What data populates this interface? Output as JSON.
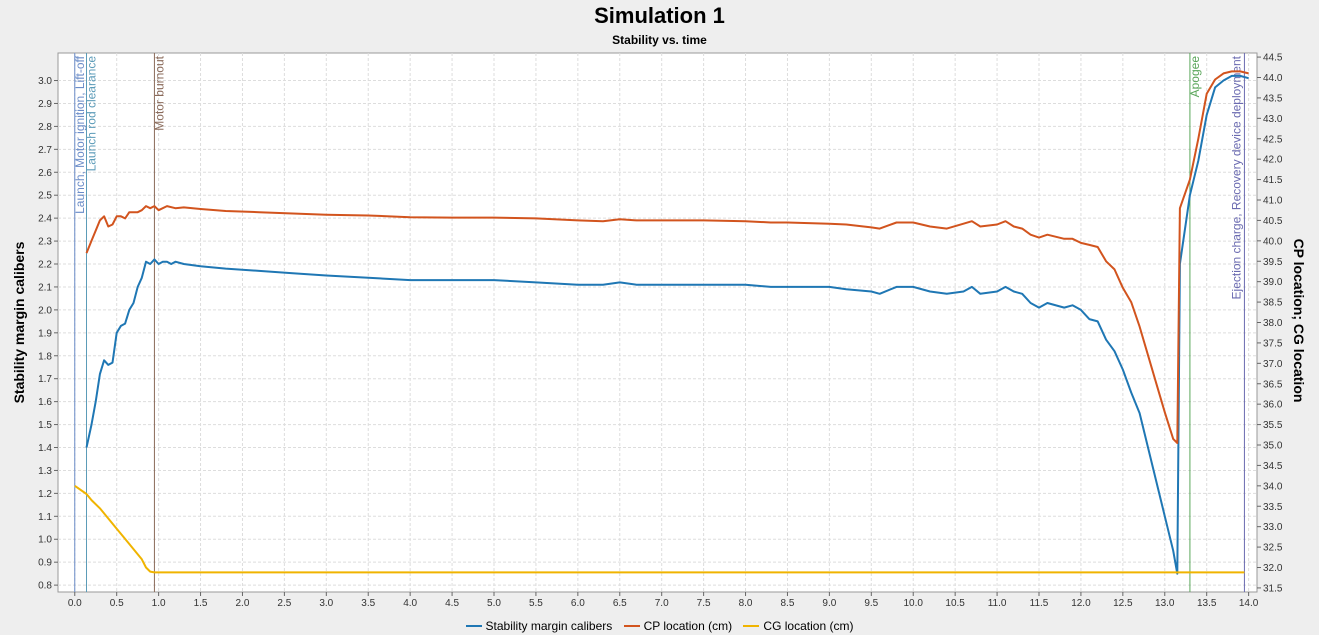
{
  "chart_data": {
    "type": "line",
    "title": "Simulation 1",
    "subtitle": "Stability vs. time",
    "ylabel_left": "Stability margin calibers",
    "ylabel_right": "CP location; CG location",
    "xlim": [
      -0.2,
      14.1
    ],
    "ylim_left": [
      0.77,
      3.12
    ],
    "ylim_right": [
      31.4,
      44.6
    ],
    "x_ticks": [
      "0.0",
      "0.5",
      "1.0",
      "1.5",
      "2.0",
      "2.5",
      "3.0",
      "3.5",
      "4.0",
      "4.5",
      "5.0",
      "5.5",
      "6.0",
      "6.5",
      "7.0",
      "7.5",
      "8.0",
      "8.5",
      "9.0",
      "9.5",
      "10.0",
      "10.5",
      "11.0",
      "11.5",
      "12.0",
      "12.5",
      "13.0",
      "13.5",
      "14.0"
    ],
    "y_ticks_left": [
      "0.8",
      "0.9",
      "1.0",
      "1.1",
      "1.2",
      "1.3",
      "1.4",
      "1.5",
      "1.6",
      "1.7",
      "1.8",
      "1.9",
      "2.0",
      "2.1",
      "2.2",
      "2.3",
      "2.4",
      "2.5",
      "2.6",
      "2.7",
      "2.8",
      "2.9",
      "3.0"
    ],
    "y_ticks_right": [
      "31.5",
      "32.0",
      "32.5",
      "33.0",
      "33.5",
      "34.0",
      "34.5",
      "35.0",
      "35.5",
      "36.0",
      "36.5",
      "37.0",
      "37.5",
      "38.0",
      "38.5",
      "39.0",
      "39.5",
      "40.0",
      "40.5",
      "41.0",
      "41.5",
      "42.0",
      "42.5",
      "43.0",
      "43.5",
      "44.0",
      "44.5"
    ],
    "grid": true,
    "legend_position": "bottom",
    "events": [
      {
        "x": 0.0,
        "label": "Launch, Motor ignition, Lift-off",
        "color": "#6a8cc8"
      },
      {
        "x": 0.14,
        "label": "Launch rod clearance",
        "color": "#5b9bb8"
      },
      {
        "x": 0.95,
        "label": "Motor burnout",
        "color": "#8a6a5a"
      },
      {
        "x": 13.3,
        "label": "Apogee",
        "color": "#5aa65a"
      },
      {
        "x": 13.95,
        "label": "Ejection charge, Recovery device deployment",
        "color": "#6a6ab0"
      }
    ],
    "series": [
      {
        "name": "Stability margin calibers",
        "color": "#1f77b4",
        "axis": "left",
        "points": [
          [
            0.14,
            1.4
          ],
          [
            0.2,
            1.5
          ],
          [
            0.25,
            1.6
          ],
          [
            0.3,
            1.72
          ],
          [
            0.35,
            1.78
          ],
          [
            0.4,
            1.76
          ],
          [
            0.45,
            1.77
          ],
          [
            0.5,
            1.9
          ],
          [
            0.55,
            1.93
          ],
          [
            0.6,
            1.94
          ],
          [
            0.65,
            2.0
          ],
          [
            0.7,
            2.03
          ],
          [
            0.75,
            2.1
          ],
          [
            0.8,
            2.14
          ],
          [
            0.85,
            2.21
          ],
          [
            0.9,
            2.2
          ],
          [
            0.95,
            2.22
          ],
          [
            1.0,
            2.2
          ],
          [
            1.05,
            2.21
          ],
          [
            1.1,
            2.21
          ],
          [
            1.15,
            2.2
          ],
          [
            1.2,
            2.21
          ],
          [
            1.3,
            2.2
          ],
          [
            1.5,
            2.19
          ],
          [
            1.8,
            2.18
          ],
          [
            2.2,
            2.17
          ],
          [
            2.6,
            2.16
          ],
          [
            3.0,
            2.15
          ],
          [
            3.5,
            2.14
          ],
          [
            4.0,
            2.13
          ],
          [
            4.5,
            2.13
          ],
          [
            5.0,
            2.13
          ],
          [
            5.5,
            2.12
          ],
          [
            6.0,
            2.11
          ],
          [
            6.3,
            2.11
          ],
          [
            6.5,
            2.12
          ],
          [
            6.7,
            2.11
          ],
          [
            7.0,
            2.11
          ],
          [
            7.5,
            2.11
          ],
          [
            8.0,
            2.11
          ],
          [
            8.3,
            2.1
          ],
          [
            8.5,
            2.1
          ],
          [
            8.8,
            2.1
          ],
          [
            9.0,
            2.1
          ],
          [
            9.2,
            2.09
          ],
          [
            9.5,
            2.08
          ],
          [
            9.6,
            2.07
          ],
          [
            9.8,
            2.1
          ],
          [
            10.0,
            2.1
          ],
          [
            10.2,
            2.08
          ],
          [
            10.4,
            2.07
          ],
          [
            10.6,
            2.08
          ],
          [
            10.7,
            2.1
          ],
          [
            10.8,
            2.07
          ],
          [
            11.0,
            2.08
          ],
          [
            11.1,
            2.1
          ],
          [
            11.2,
            2.08
          ],
          [
            11.3,
            2.07
          ],
          [
            11.4,
            2.03
          ],
          [
            11.5,
            2.01
          ],
          [
            11.6,
            2.03
          ],
          [
            11.8,
            2.01
          ],
          [
            11.9,
            2.02
          ],
          [
            12.0,
            2.0
          ],
          [
            12.1,
            1.96
          ],
          [
            12.2,
            1.95
          ],
          [
            12.3,
            1.87
          ],
          [
            12.4,
            1.82
          ],
          [
            12.5,
            1.74
          ],
          [
            12.6,
            1.64
          ],
          [
            12.7,
            1.55
          ],
          [
            12.8,
            1.4
          ],
          [
            12.9,
            1.25
          ],
          [
            13.0,
            1.1
          ],
          [
            13.1,
            0.95
          ],
          [
            13.15,
            0.85
          ],
          [
            13.18,
            2.2
          ],
          [
            13.3,
            2.5
          ],
          [
            13.4,
            2.65
          ],
          [
            13.5,
            2.85
          ],
          [
            13.6,
            2.97
          ],
          [
            13.7,
            3.0
          ],
          [
            13.8,
            3.02
          ],
          [
            13.9,
            3.02
          ],
          [
            14.0,
            3.01
          ]
        ]
      },
      {
        "name": "CP location (cm)",
        "color": "#d2541e",
        "axis": "right",
        "points": [
          [
            0.14,
            39.7
          ],
          [
            0.2,
            40.0
          ],
          [
            0.25,
            40.25
          ],
          [
            0.3,
            40.5
          ],
          [
            0.35,
            40.6
          ],
          [
            0.4,
            40.35
          ],
          [
            0.45,
            40.4
          ],
          [
            0.5,
            40.6
          ],
          [
            0.55,
            40.6
          ],
          [
            0.6,
            40.55
          ],
          [
            0.65,
            40.7
          ],
          [
            0.7,
            40.7
          ],
          [
            0.75,
            40.7
          ],
          [
            0.8,
            40.75
          ],
          [
            0.85,
            40.85
          ],
          [
            0.9,
            40.8
          ],
          [
            0.95,
            40.85
          ],
          [
            1.0,
            40.75
          ],
          [
            1.1,
            40.85
          ],
          [
            1.2,
            40.8
          ],
          [
            1.3,
            40.82
          ],
          [
            1.5,
            40.78
          ],
          [
            1.8,
            40.73
          ],
          [
            2.2,
            40.7
          ],
          [
            2.6,
            40.67
          ],
          [
            3.0,
            40.64
          ],
          [
            3.5,
            40.62
          ],
          [
            4.0,
            40.58
          ],
          [
            4.5,
            40.57
          ],
          [
            5.0,
            40.57
          ],
          [
            5.5,
            40.55
          ],
          [
            6.0,
            40.5
          ],
          [
            6.3,
            40.48
          ],
          [
            6.5,
            40.53
          ],
          [
            6.7,
            40.5
          ],
          [
            7.0,
            40.5
          ],
          [
            7.5,
            40.5
          ],
          [
            8.0,
            40.48
          ],
          [
            8.3,
            40.45
          ],
          [
            8.5,
            40.45
          ],
          [
            8.8,
            40.43
          ],
          [
            9.0,
            40.42
          ],
          [
            9.2,
            40.4
          ],
          [
            9.5,
            40.33
          ],
          [
            9.6,
            40.3
          ],
          [
            9.8,
            40.45
          ],
          [
            10.0,
            40.45
          ],
          [
            10.2,
            40.35
          ],
          [
            10.4,
            40.3
          ],
          [
            10.6,
            40.42
          ],
          [
            10.7,
            40.48
          ],
          [
            10.8,
            40.35
          ],
          [
            11.0,
            40.4
          ],
          [
            11.1,
            40.48
          ],
          [
            11.2,
            40.35
          ],
          [
            11.3,
            40.3
          ],
          [
            11.4,
            40.15
          ],
          [
            11.5,
            40.08
          ],
          [
            11.6,
            40.15
          ],
          [
            11.8,
            40.05
          ],
          [
            11.9,
            40.05
          ],
          [
            12.0,
            39.95
          ],
          [
            12.1,
            39.9
          ],
          [
            12.2,
            39.85
          ],
          [
            12.3,
            39.5
          ],
          [
            12.4,
            39.3
          ],
          [
            12.5,
            38.85
          ],
          [
            12.6,
            38.5
          ],
          [
            12.7,
            37.9
          ],
          [
            12.8,
            37.2
          ],
          [
            12.9,
            36.5
          ],
          [
            13.0,
            35.8
          ],
          [
            13.1,
            35.15
          ],
          [
            13.15,
            35.05
          ],
          [
            13.18,
            40.8
          ],
          [
            13.3,
            41.5
          ],
          [
            13.4,
            42.5
          ],
          [
            13.5,
            43.6
          ],
          [
            13.6,
            43.95
          ],
          [
            13.7,
            44.1
          ],
          [
            13.8,
            44.15
          ],
          [
            13.9,
            44.15
          ],
          [
            14.0,
            44.1
          ]
        ]
      },
      {
        "name": "CG location (cm)",
        "color": "#f0b400",
        "axis": "right",
        "points": [
          [
            0.0,
            34.0
          ],
          [
            0.14,
            33.8
          ],
          [
            0.2,
            33.65
          ],
          [
            0.3,
            33.45
          ],
          [
            0.4,
            33.2
          ],
          [
            0.5,
            32.95
          ],
          [
            0.6,
            32.7
          ],
          [
            0.7,
            32.45
          ],
          [
            0.8,
            32.2
          ],
          [
            0.85,
            32.0
          ],
          [
            0.9,
            31.9
          ],
          [
            0.95,
            31.88
          ],
          [
            1.0,
            31.88
          ],
          [
            2.0,
            31.88
          ],
          [
            4.0,
            31.88
          ],
          [
            6.0,
            31.88
          ],
          [
            8.0,
            31.88
          ],
          [
            10.0,
            31.88
          ],
          [
            12.0,
            31.88
          ],
          [
            13.0,
            31.88
          ],
          [
            13.95,
            31.88
          ]
        ]
      }
    ]
  }
}
